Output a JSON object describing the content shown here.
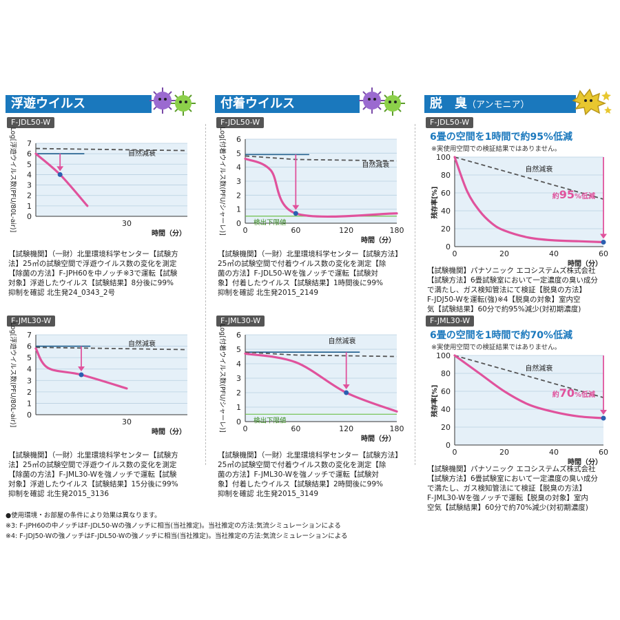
{
  "sections": {
    "floating": {
      "title": "浮遊ウイルス"
    },
    "attached": {
      "title": "付着ウイルス"
    },
    "deodor": {
      "title": "脱　臭",
      "subtitle": "（アンモニア）"
    }
  },
  "models": {
    "c1_top": "F-JDL50-W",
    "c1_bot": "F-JML30-W",
    "c2_top": "F-JDL50-W",
    "c2_bot": "F-JML30-W",
    "c3_top": "F-JDL50-W",
    "c3_bot": "F-JML30-W"
  },
  "deodor_top": {
    "headline": "6畳の空間を1時間で約95%低減",
    "note": "※実使用空間での検証結果ではありません。"
  },
  "deodor_bot": {
    "headline": "6畳の空間を1時間で約70%低減",
    "note": "※実使用空間での検証結果ではありません。"
  },
  "descriptions": {
    "c1_top": [
      "【試験機関】（一財）北里環境科学センター【試験方",
      "法】25㎥の試験空間で浮遊ウイルス数の変化を測定",
      "【除菌の方法】F-JPH60を中ノッチ※3で運転【試験",
      "対象】浮遊したウイルス【試験結果】8分後に99%",
      "抑制を確認 北生発24_0343_2号"
    ],
    "c1_bot": [
      "【試験機関】（一財）北里環境科学センター【試験方",
      "法】25㎥の試験空間で浮遊ウイルス数の変化を測定",
      "【除菌の方法】F-JML30-Wを強ノッチで運転【試験",
      "対象】浮遊したウイルス【試験結果】15分後に99%",
      "抑制を確認 北生発2015_3136"
    ],
    "c2_top": [
      "【試験機関】（一財）北里環境科学センター【試験方法】",
      "25㎥の試験空間で付着ウイルス数の変化を測定【除",
      "菌の方法】F-JDL50-Wを強ノッチで運転【試験対",
      "象】付着したウイルス【試験結果】1時間後に99%",
      "抑制を確認 北生発2015_2149"
    ],
    "c2_bot": [
      "【試験機関】（一財）北里環境科学センター【試験方法】",
      "25㎥の試験空間で付着ウイルス数の変化を測定【除",
      "菌の方法】F-JML30-Wを強ノッチで運転【試験対",
      "象】付着したウイルス【試験結果】2時間後に99%",
      "抑制を確認 北生発2015_3149"
    ],
    "c3_top": [
      "【試験機関】パナソニック エコシステムズ株式会社",
      "【試験方法】6畳試験室において一定濃度の臭い成分",
      "で満たし、ガス検知管法にて検証【脱臭の方法】",
      "F-JDJ50-Wを運転(強)※4【脱臭の対象】室内空",
      "気【試験結果】60分で約95%減少(対初期濃度)"
    ],
    "c3_bot": [
      "【試験機関】パナソニック エコシステムズ株式会社",
      "【試験方法】6畳試験室において一定濃度の臭い成分",
      "で満たし、ガス検知管法にて検証【脱臭の方法】",
      "F-JML30-Wを強ノッチで運転【脱臭の対象】室内",
      "空気【試験結果】60分で約70%減少(対初期濃度)"
    ]
  },
  "footer": [
    "●使用環境・お部屋の条件により効果は異なります。",
    "※3: F-JPH60の中ノッチはF-JDL50-Wの強ノッチに相当(当社推定)。当社推定の方法:気流シミュレーションによる",
    "※4: F-JDJ50-Wの強ノッチはF-JDL50-Wの強ノッチに相当(当社推定)。当社推定の方法:気流シミュレーションによる"
  ],
  "colors": {
    "blue": "#1a78bd",
    "pink": "#e0529c",
    "plot_bg": "#e5f0f8",
    "navy": "#1a5a8a",
    "green": "#6cc04a",
    "dot": "#2b5fb0"
  },
  "chart_data": [
    {
      "id": "c1_top",
      "type": "line",
      "ylabel": "Log[浮遊ウイルス数(PFU/80L-air)]",
      "xlabel": "時間（分）",
      "xlim": [
        0,
        50
      ],
      "ylim": [
        0,
        7
      ],
      "yticks": [
        "0",
        "1",
        "2",
        "3",
        "4",
        "5",
        "6",
        "7"
      ],
      "xticks": [
        "30"
      ],
      "xtick_values": [
        30
      ],
      "ytick_values": [
        0,
        1,
        2,
        3,
        4,
        5,
        6,
        7
      ],
      "series": [
        {
          "name": "自然減衰",
          "style": "dashed",
          "x": [
            0,
            50
          ],
          "y": [
            6.5,
            6.3
          ]
        },
        {
          "style": "pink",
          "x": [
            0,
            8,
            17
          ],
          "y": [
            6.0,
            4.0,
            1.0
          ]
        }
      ],
      "ref_line": {
        "y": 6.0,
        "x": [
          0,
          16
        ]
      },
      "arrow": {
        "x": 8,
        "y_from": 6.0,
        "y_to": 4.0
      },
      "marker": {
        "x": 8,
        "y": 4.0
      },
      "annotations": [
        {
          "text": "自然減衰",
          "x": 35,
          "y": 5.8
        }
      ]
    },
    {
      "id": "c1_bot",
      "type": "line",
      "ylabel": "Log[浮遊ウイルス数(PFU/80L-air)]",
      "xlabel": "時間（分）",
      "xlim": [
        0,
        50
      ],
      "ylim": [
        0,
        7
      ],
      "yticks": [
        "0",
        "1",
        "2",
        "3",
        "4",
        "5",
        "6",
        "7"
      ],
      "xticks": [
        "30"
      ],
      "xtick_values": [
        30
      ],
      "ytick_values": [
        0,
        1,
        2,
        3,
        4,
        5,
        6,
        7
      ],
      "series": [
        {
          "name": "自然減衰",
          "style": "dashed",
          "x": [
            0,
            50
          ],
          "y": [
            5.9,
            5.7
          ]
        },
        {
          "style": "pink",
          "x": [
            0,
            4,
            15,
            30
          ],
          "y": [
            5.8,
            4.1,
            3.5,
            2.3
          ]
        }
      ],
      "ref_line": {
        "y": 6.0,
        "x": [
          0,
          18
        ]
      },
      "arrow": {
        "x": 15,
        "y_from": 6.0,
        "y_to": 3.5
      },
      "marker": {
        "x": 15,
        "y": 3.5
      },
      "annotations": [
        {
          "text": "自然減衰",
          "x": 35,
          "y": 6.0
        }
      ]
    },
    {
      "id": "c2_top",
      "type": "line",
      "ylabel": "Log[付着ウイルス数(PFU/シャーレ)]",
      "xlabel": "時間（分）",
      "xlim": [
        0,
        180
      ],
      "ylim": [
        0,
        6
      ],
      "yticks": [
        "0",
        "1",
        "2",
        "3",
        "4",
        "5",
        "6"
      ],
      "xticks": [
        "0",
        "60",
        "120",
        "180"
      ],
      "xtick_values": [
        0,
        60,
        120,
        180
      ],
      "ytick_values": [
        0,
        1,
        2,
        3,
        4,
        5,
        6
      ],
      "series": [
        {
          "name": "自然減衰",
          "style": "dashed",
          "x": [
            0,
            60,
            180
          ],
          "y": [
            4.8,
            4.55,
            4.45
          ]
        },
        {
          "style": "pink",
          "x": [
            0,
            30,
            60,
            180
          ],
          "y": [
            4.6,
            3.8,
            0.7,
            0.7
          ]
        }
      ],
      "ref_line": {
        "y": 4.9,
        "x": [
          0,
          76
        ]
      },
      "detect_limit": {
        "y": 0.7,
        "label": "検出下限値"
      },
      "arrow": {
        "x": 60,
        "y_from": 4.9,
        "y_to": 0.7
      },
      "marker": {
        "x": 60,
        "y": 0.7
      },
      "annotations": [
        {
          "text": "自然減衰",
          "x": 155,
          "y": 4.0
        }
      ]
    },
    {
      "id": "c2_bot",
      "type": "line",
      "ylabel": "Log[付着ウイルス数(PFU/シャーレ)]",
      "xlabel": "時間（分）",
      "xlim": [
        0,
        180
      ],
      "ylim": [
        0,
        6
      ],
      "yticks": [
        "0",
        "1",
        "2",
        "3",
        "4",
        "5",
        "6"
      ],
      "xticks": [
        "0",
        "60",
        "120",
        "180"
      ],
      "xtick_values": [
        0,
        60,
        120,
        180
      ],
      "ytick_values": [
        0,
        1,
        2,
        3,
        4,
        5,
        6
      ],
      "series": [
        {
          "name": "自然減衰",
          "style": "dashed",
          "x": [
            0,
            60,
            180
          ],
          "y": [
            4.8,
            4.6,
            4.5
          ]
        },
        {
          "style": "pink",
          "x": [
            0,
            60,
            120,
            180
          ],
          "y": [
            4.7,
            4.1,
            2.0,
            0.7
          ]
        }
      ],
      "ref_line": {
        "y": 4.8,
        "x": [
          0,
          136
        ]
      },
      "detect_limit": {
        "y": 0.7,
        "label": "検出下限値"
      },
      "arrow": {
        "x": 120,
        "y_from": 4.8,
        "y_to": 2.0
      },
      "marker": {
        "x": 120,
        "y": 2.0
      },
      "annotations": [
        {
          "text": "自然減衰",
          "x": 115,
          "y": 5.4
        }
      ]
    },
    {
      "id": "c3_top",
      "type": "line",
      "ylabel": "残存率[%]",
      "xlabel": "時間（分）",
      "xlim": [
        0,
        60
      ],
      "ylim": [
        0,
        100
      ],
      "yticks": [
        "0",
        "20",
        "40",
        "60",
        "80",
        "100"
      ],
      "xticks": [
        "0",
        "20",
        "40",
        "60"
      ],
      "xtick_values": [
        0,
        20,
        40,
        60
      ],
      "ytick_values": [
        0,
        20,
        40,
        60,
        80,
        100
      ],
      "series": [
        {
          "name": "自然減衰",
          "style": "dashed",
          "x": [
            0,
            60
          ],
          "y": [
            100,
            53
          ]
        },
        {
          "style": "pink",
          "x": [
            0,
            5,
            10,
            15,
            20,
            30,
            40,
            50,
            60
          ],
          "y": [
            100,
            62,
            40,
            26,
            18,
            10,
            7,
            6,
            5
          ]
        }
      ],
      "arrow": {
        "x": 60,
        "y_from": 100,
        "y_to": 5
      },
      "marker": {
        "x": 60,
        "y": 5
      },
      "reduction_label": {
        "pre": "約",
        "num": "95",
        "post": "%低減"
      },
      "annotations": [
        {
          "text": "自然減衰",
          "x": 34,
          "y": 84
        }
      ]
    },
    {
      "id": "c3_bot",
      "type": "line",
      "ylabel": "残存率[%]",
      "xlabel": "時間（分）",
      "xlim": [
        0,
        60
      ],
      "ylim": [
        0,
        100
      ],
      "yticks": [
        "0",
        "20",
        "40",
        "60",
        "80",
        "100"
      ],
      "xticks": [
        "0",
        "20",
        "40",
        "60"
      ],
      "xtick_values": [
        0,
        20,
        40,
        60
      ],
      "ytick_values": [
        0,
        20,
        40,
        60,
        80,
        100
      ],
      "series": [
        {
          "name": "自然減衰",
          "style": "dashed",
          "x": [
            0,
            60
          ],
          "y": [
            100,
            53
          ]
        },
        {
          "style": "pink",
          "x": [
            0,
            10,
            20,
            30,
            40,
            50,
            60
          ],
          "y": [
            100,
            80,
            60,
            45,
            37,
            32,
            30
          ]
        }
      ],
      "arrow": {
        "x": 60,
        "y_from": 100,
        "y_to": 30
      },
      "marker": {
        "x": 60,
        "y": 30
      },
      "reduction_label": {
        "pre": "約",
        "num": "70",
        "post": "%低減"
      },
      "annotations": [
        {
          "text": "自然減衰",
          "x": 34,
          "y": 83
        }
      ]
    }
  ]
}
